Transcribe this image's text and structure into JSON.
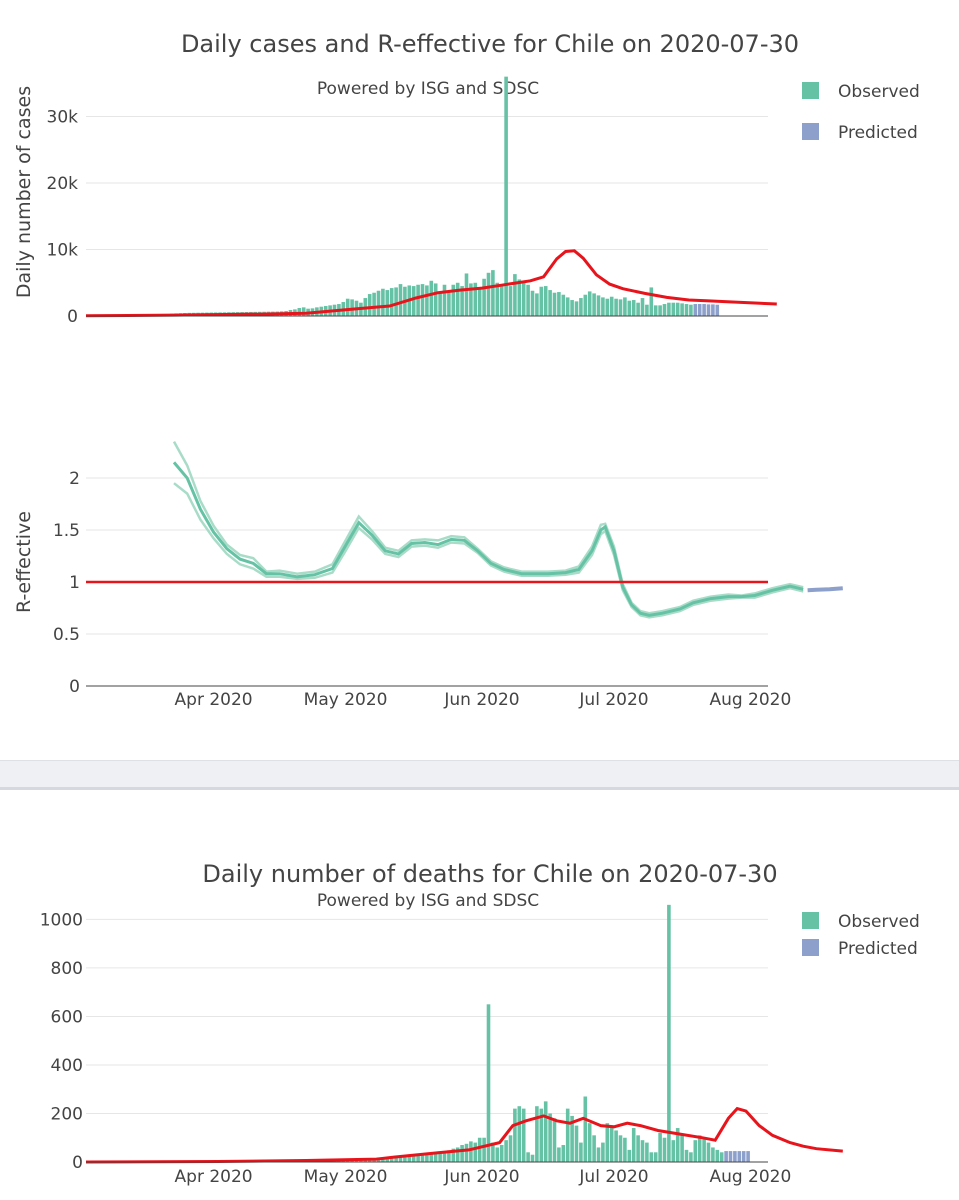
{
  "colors": {
    "observed": "#66c2a5",
    "observed_light": "#a8dcc8",
    "predicted": "#8da0cb",
    "trend": "#e8141c",
    "grid": "#e6e6e6"
  },
  "chart_data": [
    {
      "type": "bar",
      "title": "Daily cases and R-effective for Chile on 2020-07-30",
      "annotation": "Powered by ISG and SDSC",
      "ylabel": "Daily number of cases",
      "ylim": [
        0,
        37000
      ],
      "yticks": [
        0,
        10000,
        20000,
        30000
      ],
      "ytick_labels": [
        "0",
        "10k",
        "20k",
        "30k"
      ],
      "legend": [
        "Observed",
        "Predicted"
      ],
      "legend_position": "top-right",
      "x_start": "2020-03-03",
      "x_end": "2020-08-05",
      "observed_values": [
        1,
        3,
        4,
        5,
        7,
        10,
        13,
        17,
        23,
        33,
        43,
        61,
        75,
        94,
        118,
        150,
        190,
        235,
        290,
        342,
        390,
        420,
        450,
        470,
        480,
        490,
        500,
        510,
        520,
        530,
        540,
        550,
        560,
        570,
        580,
        590,
        600,
        610,
        620,
        630,
        640,
        650,
        660,
        670,
        700,
        750,
        900,
        1000,
        1200,
        1300,
        1100,
        1150,
        1300,
        1400,
        1500,
        1600,
        1700,
        1800,
        2100,
        2600,
        2500,
        2300,
        2000,
        2700,
        3300,
        3500,
        3800,
        4100,
        3900,
        4200,
        4300,
        4800,
        4400,
        4600,
        4500,
        4700,
        4800,
        4600,
        5300,
        4900,
        3600,
        4700,
        3800,
        4700,
        5000,
        4500,
        6400,
        4900,
        5000,
        4200,
        5600,
        6500,
        6900,
        5000,
        4800,
        36000,
        4500,
        6300,
        5500,
        5300,
        4700,
        3800,
        3400,
        4400,
        4500,
        3900,
        3500,
        3600,
        3200,
        2800,
        2400,
        2200,
        2700,
        3200,
        3700,
        3400,
        3100,
        2800,
        2600,
        2900,
        2600,
        2500,
        2800,
        2300,
        2400,
        2000,
        2700,
        1700,
        4300,
        1600,
        1600,
        1800,
        2000,
        2000,
        2000,
        1900,
        1800,
        1700
      ],
      "predicted_values": [
        1800,
        1800,
        1800,
        1750,
        1750,
        1700
      ],
      "trend": [
        [
          0,
          30
        ],
        [
          20,
          130
        ],
        [
          40,
          280
        ],
        [
          50,
          420
        ],
        [
          60,
          1000
        ],
        [
          69,
          1500
        ],
        [
          75,
          2700
        ],
        [
          80,
          3500
        ],
        [
          85,
          3900
        ],
        [
          90,
          4200
        ],
        [
          95,
          4700
        ],
        [
          101,
          5300
        ],
        [
          104,
          5900
        ],
        [
          107,
          8600
        ],
        [
          109,
          9700
        ],
        [
          111,
          9800
        ],
        [
          113,
          8700
        ],
        [
          116,
          6200
        ],
        [
          119,
          4800
        ],
        [
          122,
          4100
        ],
        [
          127,
          3400
        ],
        [
          132,
          2800
        ],
        [
          137,
          2400
        ],
        [
          141,
          2300
        ],
        [
          147,
          2100
        ],
        [
          152,
          1950
        ],
        [
          157,
          1800
        ]
      ]
    },
    {
      "type": "line",
      "ylabel": "R-effective",
      "ylim": [
        0,
        2.5
      ],
      "yticks": [
        0,
        0.5,
        1,
        1.5,
        2
      ],
      "ytick_labels": [
        "0",
        "0.5",
        "1",
        "1.5",
        "2"
      ],
      "x_tick_labels": [
        "Apr 2020",
        "May 2020",
        "Jun 2020",
        "Jul 2020",
        "Aug 2020"
      ],
      "reference_line": 1,
      "observed_mean": [
        [
          20,
          2.15
        ],
        [
          23,
          2.0
        ],
        [
          26,
          1.7
        ],
        [
          29,
          1.48
        ],
        [
          32,
          1.32
        ],
        [
          35,
          1.22
        ],
        [
          38,
          1.18
        ],
        [
          41,
          1.08
        ],
        [
          44,
          1.08
        ],
        [
          48,
          1.05
        ],
        [
          52,
          1.07
        ],
        [
          56,
          1.13
        ],
        [
          59,
          1.35
        ],
        [
          62,
          1.57
        ],
        [
          65,
          1.45
        ],
        [
          68,
          1.3
        ],
        [
          71,
          1.27
        ],
        [
          74,
          1.37
        ],
        [
          77,
          1.38
        ],
        [
          80,
          1.36
        ],
        [
          83,
          1.41
        ],
        [
          86,
          1.4
        ],
        [
          89,
          1.3
        ],
        [
          92,
          1.18
        ],
        [
          95,
          1.12
        ],
        [
          99,
          1.08
        ],
        [
          105,
          1.08
        ],
        [
          109,
          1.09
        ],
        [
          112,
          1.12
        ],
        [
          115,
          1.3
        ],
        [
          117,
          1.5
        ],
        [
          118,
          1.53
        ],
        [
          120,
          1.3
        ],
        [
          122,
          0.95
        ],
        [
          124,
          0.78
        ],
        [
          126,
          0.7
        ],
        [
          128,
          0.68
        ],
        [
          131,
          0.7
        ],
        [
          135,
          0.74
        ],
        [
          138,
          0.8
        ],
        [
          142,
          0.84
        ],
        [
          146,
          0.86
        ],
        [
          149,
          0.86
        ],
        [
          152,
          0.87
        ],
        [
          156,
          0.92
        ],
        [
          160,
          0.96
        ],
        [
          163,
          0.93
        ]
      ],
      "observed_upper": [
        [
          20,
          2.35
        ],
        [
          23,
          2.12
        ],
        [
          26,
          1.78
        ],
        [
          29,
          1.54
        ],
        [
          32,
          1.36
        ],
        [
          35,
          1.26
        ],
        [
          38,
          1.23
        ],
        [
          41,
          1.1
        ],
        [
          44,
          1.11
        ],
        [
          48,
          1.08
        ],
        [
          52,
          1.1
        ],
        [
          56,
          1.17
        ],
        [
          59,
          1.4
        ],
        [
          62,
          1.63
        ],
        [
          65,
          1.49
        ],
        [
          68,
          1.33
        ],
        [
          71,
          1.3
        ],
        [
          74,
          1.4
        ],
        [
          77,
          1.41
        ],
        [
          80,
          1.4
        ],
        [
          83,
          1.44
        ],
        [
          86,
          1.43
        ],
        [
          89,
          1.32
        ],
        [
          92,
          1.2
        ],
        [
          95,
          1.14
        ],
        [
          99,
          1.1
        ],
        [
          105,
          1.1
        ],
        [
          109,
          1.11
        ],
        [
          112,
          1.15
        ],
        [
          115,
          1.34
        ],
        [
          117,
          1.55
        ],
        [
          118,
          1.56
        ],
        [
          120,
          1.34
        ],
        [
          122,
          0.98
        ],
        [
          124,
          0.8
        ],
        [
          126,
          0.72
        ],
        [
          128,
          0.7
        ],
        [
          131,
          0.72
        ],
        [
          135,
          0.76
        ],
        [
          138,
          0.82
        ],
        [
          142,
          0.86
        ],
        [
          146,
          0.88
        ],
        [
          149,
          0.87
        ],
        [
          152,
          0.89
        ],
        [
          156,
          0.94
        ],
        [
          160,
          0.98
        ],
        [
          163,
          0.95
        ]
      ],
      "observed_lower": [
        [
          20,
          1.95
        ],
        [
          23,
          1.85
        ],
        [
          26,
          1.6
        ],
        [
          29,
          1.42
        ],
        [
          32,
          1.27
        ],
        [
          35,
          1.17
        ],
        [
          38,
          1.13
        ],
        [
          41,
          1.05
        ],
        [
          44,
          1.05
        ],
        [
          48,
          1.03
        ],
        [
          52,
          1.04
        ],
        [
          56,
          1.09
        ],
        [
          59,
          1.3
        ],
        [
          62,
          1.52
        ],
        [
          65,
          1.41
        ],
        [
          68,
          1.27
        ],
        [
          71,
          1.24
        ],
        [
          74,
          1.34
        ],
        [
          77,
          1.35
        ],
        [
          80,
          1.33
        ],
        [
          83,
          1.38
        ],
        [
          86,
          1.37
        ],
        [
          89,
          1.28
        ],
        [
          92,
          1.16
        ],
        [
          95,
          1.1
        ],
        [
          99,
          1.06
        ],
        [
          105,
          1.06
        ],
        [
          109,
          1.07
        ],
        [
          112,
          1.09
        ],
        [
          115,
          1.26
        ],
        [
          117,
          1.46
        ],
        [
          118,
          1.49
        ],
        [
          120,
          1.26
        ],
        [
          122,
          0.92
        ],
        [
          124,
          0.76
        ],
        [
          126,
          0.68
        ],
        [
          128,
          0.66
        ],
        [
          131,
          0.68
        ],
        [
          135,
          0.72
        ],
        [
          138,
          0.78
        ],
        [
          142,
          0.82
        ],
        [
          146,
          0.84
        ],
        [
          149,
          0.85
        ],
        [
          152,
          0.85
        ],
        [
          156,
          0.9
        ],
        [
          160,
          0.94
        ],
        [
          163,
          0.91
        ]
      ],
      "predicted": [
        [
          164,
          0.92
        ],
        [
          166,
          0.925
        ],
        [
          169,
          0.93
        ],
        [
          172,
          0.94
        ]
      ]
    },
    {
      "type": "bar",
      "title": "Daily number of deaths for Chile on 2020-07-30",
      "annotation": "Powered by ISG and SDSC",
      "ylabel": "",
      "ylim": [
        0,
        1080
      ],
      "yticks": [
        0,
        200,
        400,
        600,
        800,
        1000
      ],
      "ytick_labels": [
        "0",
        "200",
        "400",
        "600",
        "800",
        "1000"
      ],
      "x_tick_labels": [
        "Apr 2020",
        "May 2020",
        "Jun 2020",
        "Jul 2020",
        "Aug 2020"
      ],
      "legend": [
        "Observed",
        "Predicted"
      ],
      "legend_position": "top-right",
      "x_start": "2020-03-03",
      "x_end": "2020-08-05",
      "observed_values": [
        0,
        0,
        0,
        0,
        0,
        0,
        0,
        0,
        0,
        0,
        0,
        0,
        0,
        0,
        0,
        0,
        0,
        0,
        0,
        0,
        0,
        1,
        1,
        1,
        2,
        2,
        2,
        3,
        3,
        3,
        3,
        4,
        4,
        4,
        5,
        5,
        5,
        5,
        6,
        6,
        6,
        6,
        7,
        7,
        7,
        7,
        8,
        8,
        8,
        8,
        9,
        9,
        9,
        9,
        10,
        10,
        10,
        10,
        11,
        11,
        11,
        11,
        12,
        12,
        12,
        12,
        13,
        13,
        14,
        15,
        20,
        22,
        25,
        28,
        30,
        32,
        35,
        33,
        38,
        40,
        42,
        45,
        48,
        55,
        60,
        70,
        75,
        85,
        80,
        100,
        100,
        650,
        80,
        60,
        70,
        90,
        110,
        220,
        230,
        220,
        40,
        30,
        230,
        220,
        250,
        200,
        180,
        60,
        70,
        220,
        190,
        150,
        80,
        270,
        160,
        110,
        60,
        80,
        160,
        140,
        130,
        110,
        100,
        50,
        140,
        110,
        90,
        80,
        40,
        40,
        120,
        100,
        1060,
        90,
        140,
        110,
        50,
        40,
        90,
        110,
        100,
        80,
        60,
        50,
        40
      ],
      "predicted_values": [
        45,
        45,
        45,
        45,
        45,
        45
      ],
      "trend": [
        [
          0,
          0
        ],
        [
          30,
          2
        ],
        [
          50,
          6
        ],
        [
          66,
          12
        ],
        [
          70,
          20
        ],
        [
          80,
          38
        ],
        [
          87,
          50
        ],
        [
          94,
          80
        ],
        [
          97,
          150
        ],
        [
          100,
          170
        ],
        [
          104,
          190
        ],
        [
          107,
          170
        ],
        [
          110,
          160
        ],
        [
          113,
          180
        ],
        [
          117,
          150
        ],
        [
          120,
          145
        ],
        [
          123,
          160
        ],
        [
          126,
          150
        ],
        [
          130,
          130
        ],
        [
          135,
          115
        ],
        [
          140,
          100
        ],
        [
          143,
          90
        ],
        [
          146,
          180
        ],
        [
          148,
          220
        ],
        [
          150,
          210
        ],
        [
          153,
          150
        ],
        [
          156,
          110
        ],
        [
          160,
          80
        ],
        [
          163,
          65
        ],
        [
          166,
          55
        ],
        [
          172,
          45
        ]
      ]
    }
  ],
  "annotation": "Powered by ISG and SDSC"
}
